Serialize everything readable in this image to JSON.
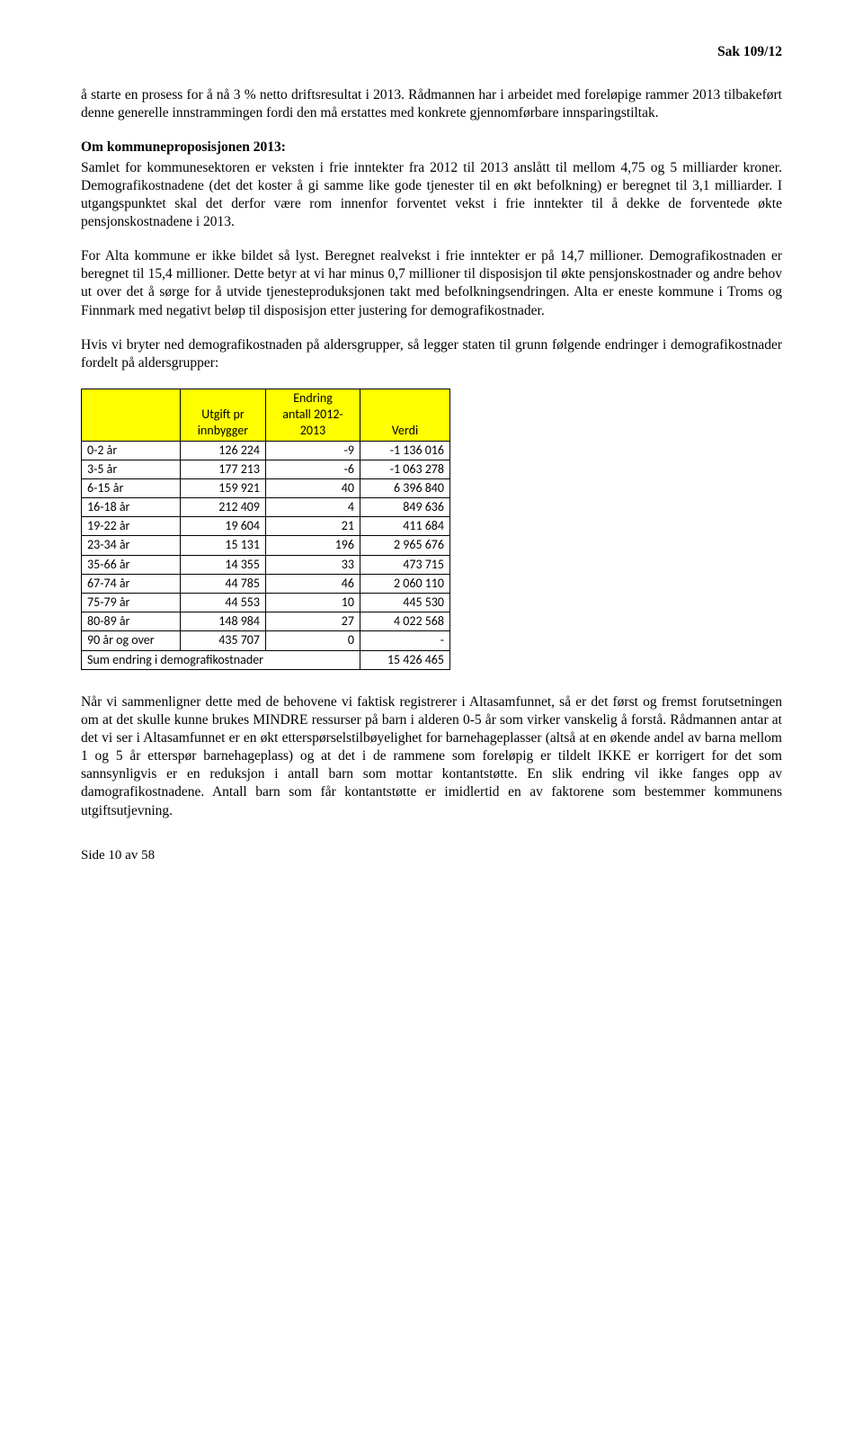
{
  "header": {
    "case_no": "Sak 109/12"
  },
  "p1": "å starte en prosess for å nå 3 % netto driftsresultat i 2013. Rådmannen har i arbeidet med foreløpige rammer 2013 tilbakeført denne generelle innstrammingen fordi den må erstattes med konkrete gjennomførbare innsparingstiltak.",
  "section_title": "Om kommuneproposisjonen 2013:",
  "p2": "Samlet for kommunesektoren er veksten i frie inntekter fra 2012 til 2013 anslått til mellom 4,75 og 5 milliarder kroner. Demografikostnadene (det det koster å gi samme like gode tjenester til en økt befolkning) er beregnet til 3,1 milliarder. I utgangspunktet skal det derfor være rom innenfor forventet vekst i frie inntekter til å dekke de forventede økte pensjonskostnadene i 2013.",
  "p3": "For Alta kommune er ikke bildet så lyst. Beregnet realvekst i frie inntekter er på 14,7 millioner. Demografikostnaden er beregnet til 15,4 millioner. Dette betyr at vi har minus 0,7 millioner til disposisjon til økte pensjonskostnader og andre behov ut over det å sørge for å utvide tjenesteproduksjonen takt med befolkningsendringen. Alta er eneste kommune i Troms og Finnmark med negativt beløp til disposisjon etter justering for demografikostnader.",
  "p4": "Hvis vi bryter ned demografikostnaden på aldersgrupper, så legger staten til grunn følgende endringer i demografikostnader fordelt på aldersgrupper:",
  "table": {
    "header_bg": "#ffff00",
    "columns": [
      "",
      "Utgift pr innbygger",
      "Endring antall 2012-2013",
      "Verdi"
    ],
    "rows": [
      [
        "0-2 år",
        "126 224",
        "-9",
        "-1 136 016"
      ],
      [
        "3-5 år",
        "177 213",
        "-6",
        "-1 063 278"
      ],
      [
        "6-15 år",
        "159 921",
        "40",
        "6 396 840"
      ],
      [
        "16-18 år",
        "212 409",
        "4",
        "849 636"
      ],
      [
        "19-22 år",
        "19 604",
        "21",
        "411 684"
      ],
      [
        "23-34 år",
        "15 131",
        "196",
        "2 965 676"
      ],
      [
        "35-66 år",
        "14 355",
        "33",
        "473 715"
      ],
      [
        "67-74 år",
        "44 785",
        "46",
        "2 060 110"
      ],
      [
        "75-79 år",
        "44 553",
        "10",
        "445 530"
      ],
      [
        "80-89 år",
        "148 984",
        "27",
        "4 022 568"
      ],
      [
        "90 år og over",
        "435 707",
        "0",
        "-"
      ]
    ],
    "sum_label": "Sum endring i demografikostnader",
    "sum_value": "15 426 465"
  },
  "p5": "Når vi sammenligner dette med de behovene vi faktisk registrerer i Altasamfunnet, så er det først og fremst forutsetningen om at det skulle kunne brukes MINDRE ressurser på barn i alderen 0-5 år som virker vanskelig å forstå. Rådmannen antar at det vi ser i Altasamfunnet er en økt etterspørselstilbøyelighet for barnehageplasser (altså at en økende andel av barna mellom 1 og 5 år etterspør barnehageplass) og at det i de rammene som foreløpig er tildelt IKKE er korrigert for det som sannsynligvis er en reduksjon i antall barn som mottar kontantstøtte. En slik endring vil ikke fanges opp av damografikostnadene. Antall barn som får kontantstøtte er imidlertid en av faktorene som bestemmer kommunens utgiftsutjevning.",
  "footer": "Side 10 av 58"
}
